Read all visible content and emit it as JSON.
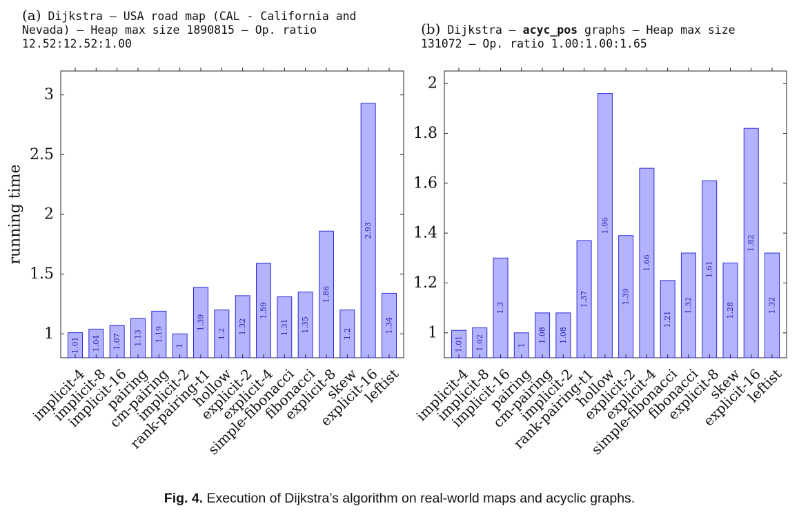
{
  "figure": {
    "caption_label": "Fig. 4.",
    "caption_text": "Execution of Dijkstra’s algorithm on real-world maps and acyclic graphs."
  },
  "panels": [
    {
      "label": "(a)",
      "title_parts": [
        {
          "text": "Dijkstra – USA road map (CAL - California and Nevada) – Heap max size 1890815 – Op. ratio 12.52:12.52:1.00",
          "bold": false
        }
      ]
    },
    {
      "label": "(b)",
      "title_parts": [
        {
          "text": "Dijkstra – ",
          "bold": false
        },
        {
          "text": "acyc_pos",
          "bold": true
        },
        {
          "text": " graphs – Heap max size 131072 – Op. ratio 1.00:1.00:1.65",
          "bold": false
        }
      ]
    }
  ],
  "chart_data": [
    {
      "type": "bar",
      "title": "Dijkstra – USA road map (CAL - California and Nevada) – Heap max size 1890815 – Op. ratio 12.52:12.52:1.00",
      "xlabel": "",
      "ylabel": "running time",
      "ylim": [
        0.8,
        3.2
      ],
      "yticks": [
        1,
        1.5,
        2,
        2.5,
        3
      ],
      "ytick_labels": [
        "1",
        "1.5",
        "2",
        "2.5",
        "3"
      ],
      "categories": [
        "implicit-4",
        "implicit-8",
        "implicit-16",
        "pairing",
        "cm-pairing",
        "implicit-2",
        "rank-pairing-t1",
        "hollow",
        "explicit-2",
        "explicit-4",
        "simple-fibonacci",
        "fibonacci",
        "explicit-8",
        "skew",
        "explicit-16",
        "leftist"
      ],
      "values": [
        1.01,
        1.04,
        1.07,
        1.13,
        1.19,
        1,
        1.39,
        1.2,
        1.32,
        1.59,
        1.31,
        1.35,
        1.86,
        1.2,
        2.93,
        1.34
      ],
      "value_labels": [
        "1.01",
        "1.04",
        "1.07",
        "1.13",
        "1.19",
        "1",
        "1.39",
        "1.2",
        "1.32",
        "1.59",
        "1.31",
        "1.35",
        "1.86",
        "1.2",
        "2.93",
        "1.34"
      ],
      "grid": false,
      "bar_fill": "#b3b3ff",
      "bar_stroke": "#2b2bd9",
      "label_color": "#2222aa"
    },
    {
      "type": "bar",
      "title": "Dijkstra – acyc_pos graphs – Heap max size 131072 – Op. ratio 1.00:1.00:1.65",
      "xlabel": "",
      "ylabel": "",
      "ylim": [
        0.9,
        2.05
      ],
      "yticks": [
        1,
        1.2,
        1.4,
        1.6,
        1.8,
        2
      ],
      "ytick_labels": [
        "1",
        "1.2",
        "1.4",
        "1.6",
        "1.8",
        "2"
      ],
      "categories": [
        "implicit-4",
        "implicit-8",
        "implicit-16",
        "pairing",
        "cm-pairing",
        "implicit-2",
        "rank-pairing-t1",
        "hollow",
        "explicit-2",
        "explicit-4",
        "simple-fibonacci",
        "fibonacci",
        "explicit-8",
        "skew",
        "explicit-16",
        "leftist"
      ],
      "values": [
        1.01,
        1.02,
        1.3,
        1,
        1.08,
        1.08,
        1.37,
        1.96,
        1.39,
        1.66,
        1.21,
        1.32,
        1.61,
        1.28,
        1.82,
        1.32
      ],
      "value_labels": [
        "1.01",
        "1.02",
        "1.3",
        "1",
        "1.08",
        "1.08",
        "1.37",
        "1.96",
        "1.39",
        "1.66",
        "1.21",
        "1.32",
        "1.61",
        "1.28",
        "1.82",
        "1.32"
      ],
      "grid": false,
      "bar_fill": "#b3b3ff",
      "bar_stroke": "#2b2bd9",
      "label_color": "#2222aa"
    }
  ]
}
